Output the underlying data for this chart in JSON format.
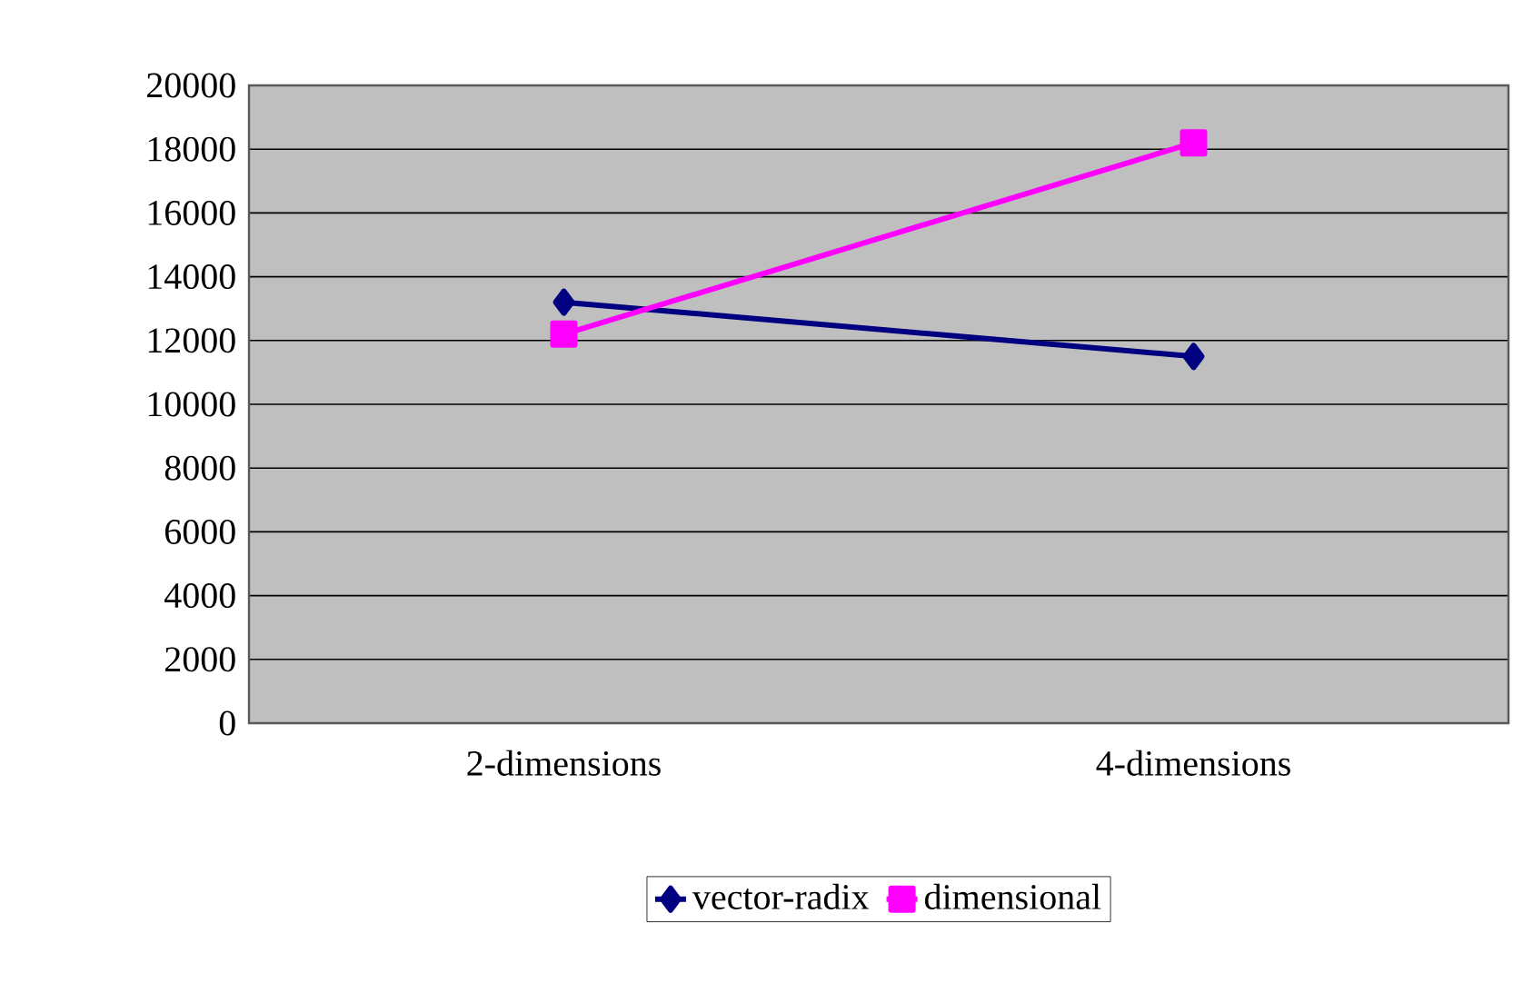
{
  "chart_data": {
    "type": "line",
    "categories": [
      "2-dimensions",
      "4-dimensions"
    ],
    "series": [
      {
        "name": "vector-radix",
        "color": "#000080",
        "values": [
          13200,
          11500
        ],
        "marker": "diamond"
      },
      {
        "name": "dimensional",
        "color": "#ff00ff",
        "values": [
          12200,
          18200
        ],
        "marker": "square"
      }
    ],
    "ylim": [
      0,
      20000
    ],
    "yticks": [
      0,
      2000,
      4000,
      6000,
      8000,
      10000,
      12000,
      14000,
      16000,
      18000,
      20000
    ],
    "grid": "y",
    "legend": "bottom",
    "line_style": "solid"
  }
}
